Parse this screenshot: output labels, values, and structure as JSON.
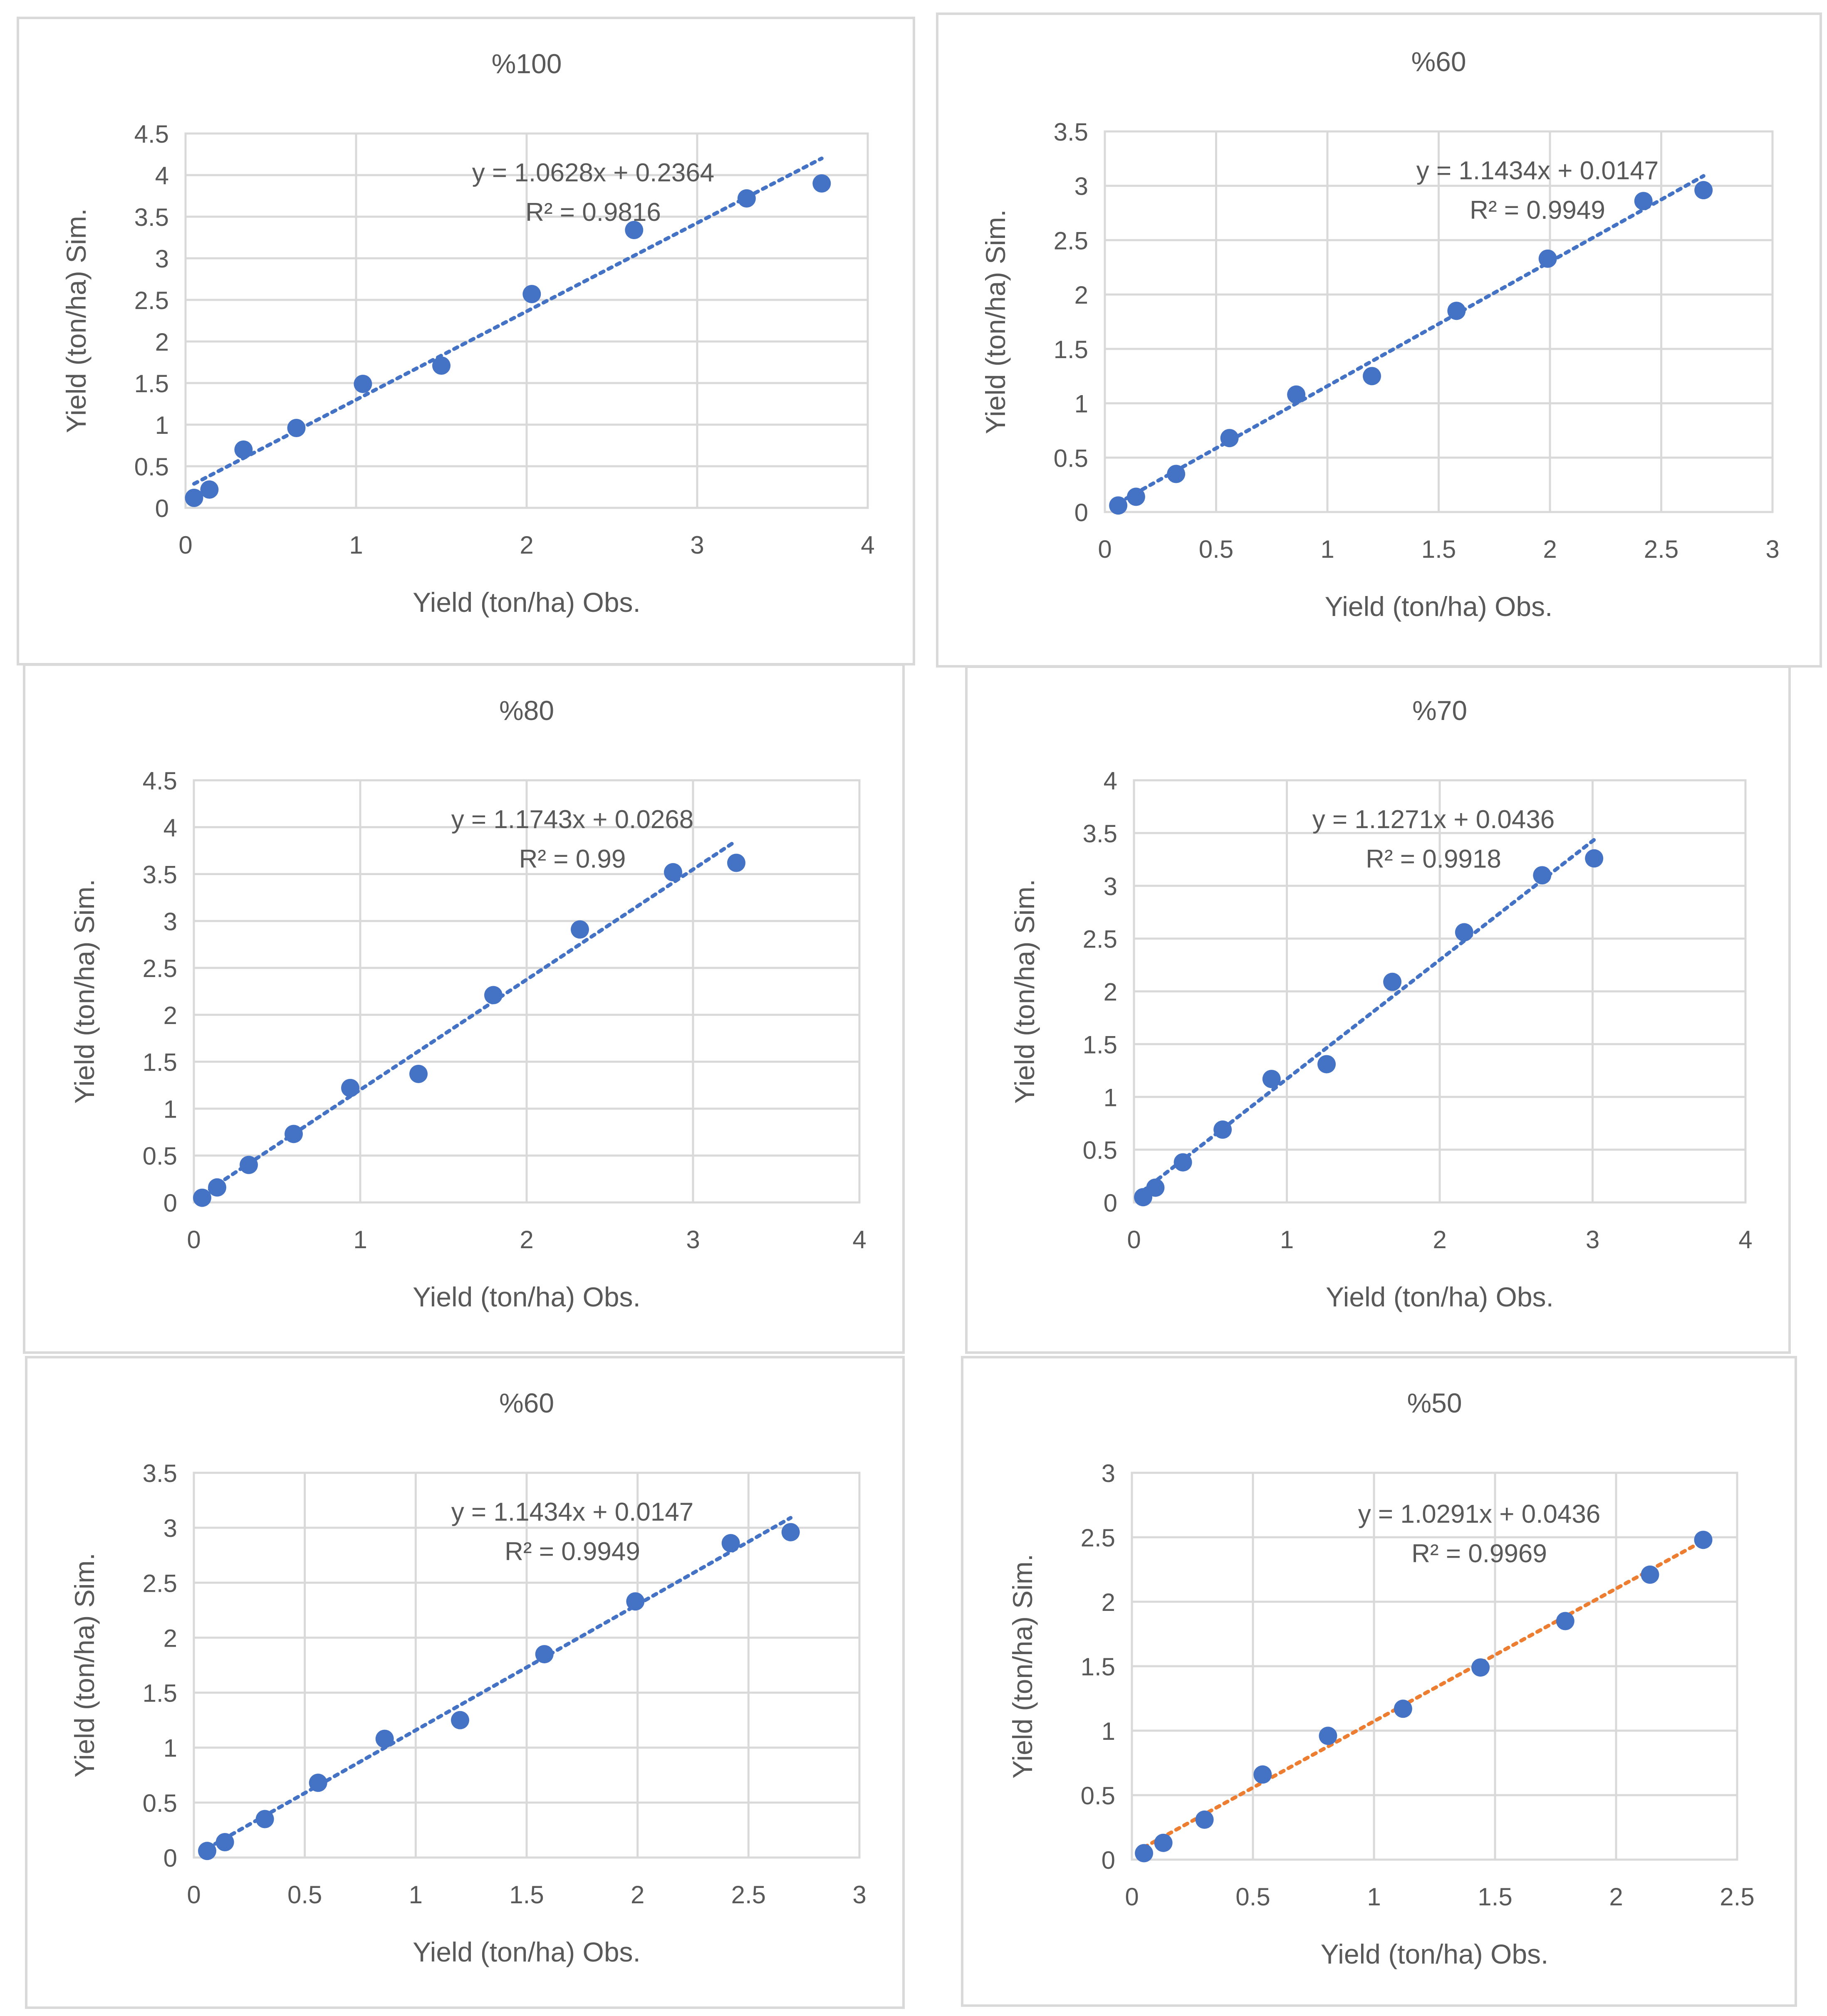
{
  "chart_data": [
    {
      "type": "scatter",
      "title": "%100",
      "xlabel": "Yield (ton/ha) Obs.",
      "ylabel": "Yield (ton/ha) Sim.",
      "xlim": [
        0,
        4
      ],
      "ylim": [
        0,
        4.5
      ],
      "xticks": [
        0,
        1,
        2,
        3,
        4
      ],
      "xtick_labels": [
        "0",
        "1",
        "2",
        "3",
        "4"
      ],
      "yticks": [
        0,
        0.5,
        1,
        1.5,
        2,
        2.5,
        3,
        3.5,
        4,
        4.5
      ],
      "ytick_labels": [
        "0",
        "0.5",
        "1",
        "1.5",
        "2",
        "2.5",
        "3",
        "3.5",
        "4",
        "4.5"
      ],
      "x": [
        0.05,
        0.14,
        0.34,
        0.65,
        1.04,
        1.5,
        2.03,
        2.63,
        3.29,
        3.73
      ],
      "y": [
        0.12,
        0.22,
        0.7,
        0.96,
        1.49,
        1.71,
        2.57,
        3.34,
        3.72,
        3.9
      ],
      "marker_color": "#4472c4",
      "trendline": {
        "slope": 1.0628,
        "intercept": 0.2364,
        "x_range": [
          0.05,
          3.73
        ],
        "color": "#4472c4",
        "style": "dotted"
      },
      "equation": "y = 1.0628x + 0.2364",
      "r_squared": "R² = 0.9816"
    },
    {
      "type": "scatter",
      "title": "%60",
      "xlabel": "Yield (ton/ha) Obs.",
      "ylabel": "Yield (ton/ha) Sim.",
      "xlim": [
        0,
        3
      ],
      "ylim": [
        0,
        3.5
      ],
      "xticks": [
        0,
        0.5,
        1,
        1.5,
        2,
        2.5,
        3
      ],
      "xtick_labels": [
        "0",
        "0.5",
        "1",
        "1.5",
        "2",
        "2.5",
        "3"
      ],
      "yticks": [
        0,
        0.5,
        1,
        1.5,
        2,
        2.5,
        3,
        3.5
      ],
      "ytick_labels": [
        "0",
        "0.5",
        "1",
        "1.5",
        "2",
        "2.5",
        "3",
        "3.5"
      ],
      "x": [
        0.06,
        0.14,
        0.32,
        0.56,
        0.86,
        1.2,
        1.58,
        1.99,
        2.42,
        2.69
      ],
      "y": [
        0.06,
        0.14,
        0.35,
        0.68,
        1.08,
        1.25,
        1.85,
        2.33,
        2.86,
        2.96
      ],
      "marker_color": "#4472c4",
      "trendline": {
        "slope": 1.1434,
        "intercept": 0.0147,
        "x_range": [
          0.06,
          2.69
        ],
        "color": "#4472c4",
        "style": "dotted"
      },
      "equation": "y = 1.1434x + 0.0147",
      "r_squared": "R² = 0.9949"
    },
    {
      "type": "scatter",
      "title": "%80",
      "xlabel": "Yield (ton/ha) Obs.",
      "ylabel": "Yield (ton/ha) Sim.",
      "xlim": [
        0,
        4
      ],
      "ylim": [
        0,
        4.5
      ],
      "xticks": [
        0,
        1,
        2,
        3,
        4
      ],
      "xtick_labels": [
        "0",
        "1",
        "2",
        "3",
        "4"
      ],
      "yticks": [
        0,
        0.5,
        1,
        1.5,
        2,
        2.5,
        3,
        3.5,
        4,
        4.5
      ],
      "ytick_labels": [
        "0",
        "0.5",
        "1",
        "1.5",
        "2",
        "2.5",
        "3",
        "3.5",
        "4",
        "4.5"
      ],
      "x": [
        0.05,
        0.14,
        0.33,
        0.6,
        0.94,
        1.35,
        1.8,
        2.32,
        2.88,
        3.26
      ],
      "y": [
        0.05,
        0.16,
        0.4,
        0.73,
        1.22,
        1.37,
        2.21,
        2.91,
        3.52,
        3.62
      ],
      "marker_color": "#4472c4",
      "trendline": {
        "slope": 1.1743,
        "intercept": 0.0268,
        "x_range": [
          0.05,
          3.26
        ],
        "color": "#4472c4",
        "style": "dotted"
      },
      "equation": "y = 1.1743x + 0.0268",
      "r_squared": "R² = 0.99"
    },
    {
      "type": "scatter",
      "title": "%70",
      "xlabel": "Yield (ton/ha) Obs.",
      "ylabel": "Yield (ton/ha) Sim.",
      "xlim": [
        0,
        4
      ],
      "ylim": [
        0,
        4
      ],
      "xticks": [
        0,
        1,
        2,
        3,
        4
      ],
      "xtick_labels": [
        "0",
        "1",
        "2",
        "3",
        "4"
      ],
      "yticks": [
        0,
        0.5,
        1,
        1.5,
        2,
        2.5,
        3,
        3.5,
        4
      ],
      "ytick_labels": [
        "0",
        "0.5",
        "1",
        "1.5",
        "2",
        "2.5",
        "3",
        "3.5",
        "4"
      ],
      "x": [
        0.06,
        0.14,
        0.32,
        0.58,
        0.9,
        1.26,
        1.69,
        2.16,
        2.67,
        3.01
      ],
      "y": [
        0.05,
        0.14,
        0.38,
        0.69,
        1.17,
        1.31,
        2.09,
        2.56,
        3.1,
        3.26
      ],
      "marker_color": "#4472c4",
      "trendline": {
        "slope": 1.1271,
        "intercept": 0.0436,
        "x_range": [
          0.06,
          3.01
        ],
        "color": "#4472c4",
        "style": "dotted"
      },
      "equation": "y = 1.1271x + 0.0436",
      "r_squared": "R² = 0.9918"
    },
    {
      "type": "scatter",
      "title": "%60",
      "xlabel": "Yield (ton/ha) Obs.",
      "ylabel": "Yield (ton/ha) Sim.",
      "xlim": [
        0,
        3
      ],
      "ylim": [
        0,
        3.5
      ],
      "xticks": [
        0,
        0.5,
        1,
        1.5,
        2,
        2.5,
        3
      ],
      "xtick_labels": [
        "0",
        "0.5",
        "1",
        "1.5",
        "2",
        "2.5",
        "3"
      ],
      "yticks": [
        0,
        0.5,
        1,
        1.5,
        2,
        2.5,
        3,
        3.5
      ],
      "ytick_labels": [
        "0",
        "0.5",
        "1",
        "1.5",
        "2",
        "2.5",
        "3",
        "3.5"
      ],
      "x": [
        0.06,
        0.14,
        0.32,
        0.56,
        0.86,
        1.2,
        1.58,
        1.99,
        2.42,
        2.69
      ],
      "y": [
        0.06,
        0.14,
        0.35,
        0.68,
        1.08,
        1.25,
        1.85,
        2.33,
        2.86,
        2.96
      ],
      "marker_color": "#4472c4",
      "trendline": {
        "slope": 1.1434,
        "intercept": 0.0147,
        "x_range": [
          0.06,
          2.69
        ],
        "color": "#4472c4",
        "style": "dotted"
      },
      "equation": "y = 1.1434x + 0.0147",
      "r_squared": "R² = 0.9949"
    },
    {
      "type": "scatter",
      "title": "%50",
      "xlabel": "Yield (ton/ha) Obs.",
      "ylabel": "Yield (ton/ha) Sim.",
      "xlim": [
        0,
        2.5
      ],
      "ylim": [
        0,
        3
      ],
      "xticks": [
        0,
        0.5,
        1,
        1.5,
        2,
        2.5
      ],
      "xtick_labels": [
        "0",
        "0.5",
        "1",
        "1.5",
        "2",
        "2.5"
      ],
      "yticks": [
        0,
        0.5,
        1,
        1.5,
        2,
        2.5,
        3
      ],
      "ytick_labels": [
        "0",
        "0.5",
        "1",
        "1.5",
        "2",
        "2.5",
        "3"
      ],
      "x": [
        0.05,
        0.13,
        0.3,
        0.54,
        0.81,
        1.12,
        1.44,
        1.79,
        2.14,
        2.36
      ],
      "y": [
        0.05,
        0.13,
        0.31,
        0.66,
        0.96,
        1.17,
        1.49,
        1.85,
        2.21,
        2.48
      ],
      "marker_color": "#4472c4",
      "trendline": {
        "slope": 1.0291,
        "intercept": 0.0436,
        "x_range": [
          0.05,
          2.36
        ],
        "color": "#ed7d31",
        "style": "dotted"
      },
      "equation": "y = 1.0291x + 0.0436",
      "r_squared": "R² = 0.9969"
    }
  ]
}
